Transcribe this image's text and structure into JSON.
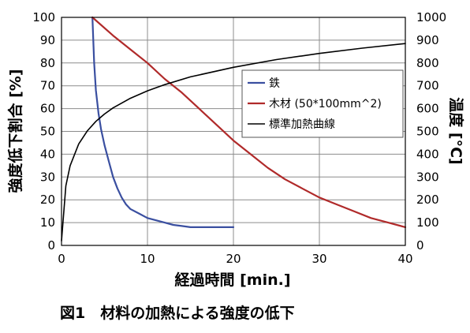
{
  "caption": "図1　材料の加熱による強度の低下",
  "chart_data": {
    "type": "line",
    "xlabel": "経過時間 [min.]",
    "ylabel_left": "強度低下割合 [%]",
    "ylabel_right": "温度 [°C]",
    "xlim": [
      0,
      40
    ],
    "ylim_left": [
      0,
      100
    ],
    "ylim_right": [
      0,
      1000
    ],
    "x_ticks": [
      "0",
      "10",
      "20",
      "30",
      "40"
    ],
    "y_left_ticks": [
      "0",
      "10",
      "20",
      "30",
      "40",
      "50",
      "60",
      "70",
      "80",
      "90",
      "100"
    ],
    "y_right_ticks": [
      "0",
      "100",
      "200",
      "300",
      "400",
      "500",
      "600",
      "700",
      "800",
      "900",
      "1000"
    ],
    "grid": true,
    "legend_position": "right",
    "series": [
      {
        "name": "鉄",
        "color": "#3a4fa0",
        "axis": "left",
        "x": [
          3.6,
          3.8,
          4.0,
          4.3,
          4.6,
          5.0,
          5.5,
          6.0,
          6.5,
          7.0,
          7.5,
          8.0,
          9.0,
          10.0,
          11.0,
          12.0,
          13.0,
          14.0,
          15.0,
          17.0,
          19.0,
          20.0
        ],
        "y": [
          100,
          80,
          68,
          58,
          51,
          44,
          37,
          30,
          25,
          21,
          18,
          16,
          14,
          12,
          11,
          10,
          9,
          8.5,
          8,
          8,
          8,
          8
        ]
      },
      {
        "name": "木材 (50*100mm^2)",
        "color": "#b02a2a",
        "axis": "left",
        "x": [
          3.6,
          6,
          8,
          10,
          12,
          14,
          16,
          18,
          20,
          22,
          24,
          26,
          28,
          30,
          32,
          34,
          36,
          38,
          40
        ],
        "y": [
          100,
          92,
          86,
          80,
          73,
          67,
          60,
          53,
          46,
          40,
          34,
          29,
          25,
          21,
          18,
          15,
          12,
          10,
          8
        ]
      },
      {
        "name": "標準加熱曲線",
        "color": "#000000",
        "axis": "right",
        "x": [
          0,
          0.5,
          1,
          2,
          3,
          4,
          5,
          6,
          8,
          10,
          12,
          15,
          20,
          25,
          30,
          35,
          40
        ],
        "y": [
          20,
          261,
          349,
          445,
          502,
          544,
          576,
          603,
          645,
          678,
          705,
          739,
          781,
          815,
          842,
          865,
          885
        ]
      }
    ]
  }
}
